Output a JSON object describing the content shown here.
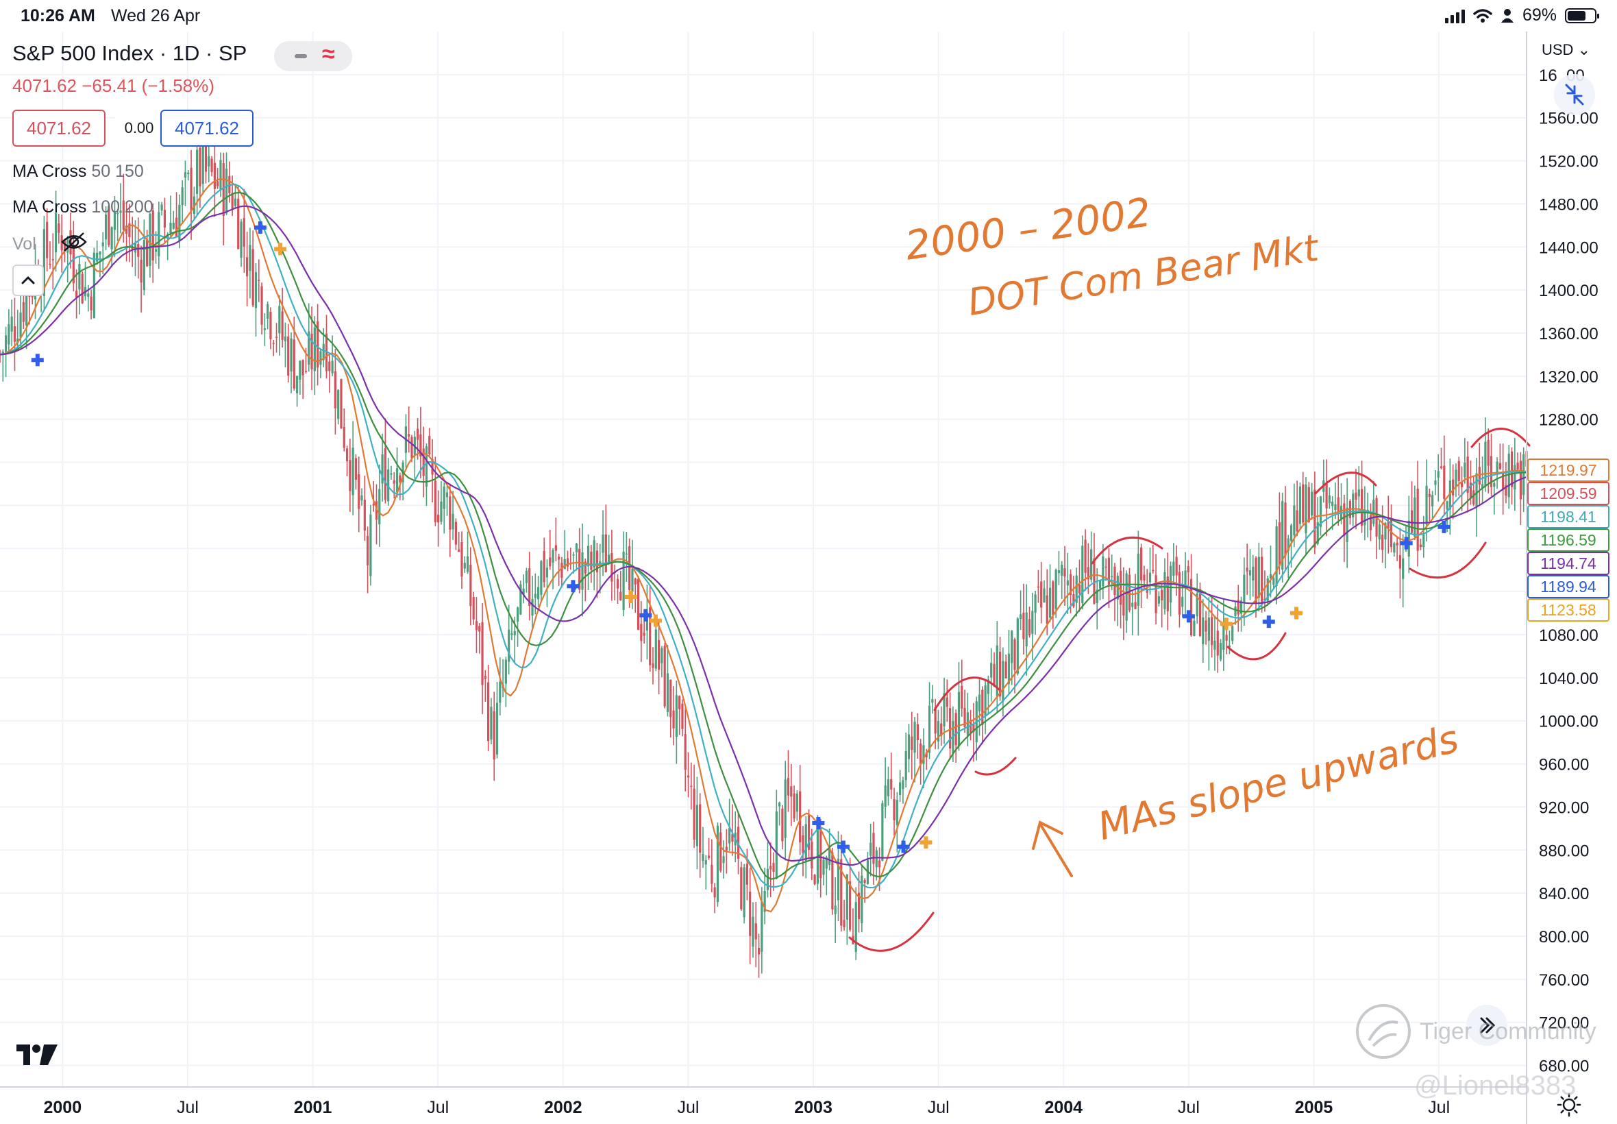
{
  "status_bar": {
    "time": "10:26 AM",
    "date": "Wed 26 Apr",
    "battery": "69%",
    "battery_level": 0.69
  },
  "header": {
    "symbol_title": "S&P 500 Index · 1D · SP",
    "last_change": "4071.62 −65.41 (−1.58%)",
    "sell_price": "4071.62",
    "spread": "0.00",
    "buy_price": "4071.62"
  },
  "indicators": [
    {
      "name": "MA Cross",
      "params": "50 150"
    },
    {
      "name": "MA Cross",
      "params": "100 200"
    }
  ],
  "volume_label": "Vol",
  "currency": "USD",
  "annotations": {
    "top_line1": "2000 – 2002",
    "top_line2": "DOT Com Bear Mkt",
    "bottom": "MAs slope upwards"
  },
  "watermark": {
    "brand": "Tiger Community",
    "user": "@Lionel8383"
  },
  "icons": [
    "hide-eye-icon",
    "collapse-chevron-icon",
    "expand-arrows-icon",
    "tradingview-logo-icon",
    "goto-realtime-icon",
    "settings-sun-icon",
    "wifi-icon",
    "signal-icon",
    "person-icon",
    "battery-icon"
  ],
  "chart_data": {
    "type": "candlestick",
    "title": "S&P 500 Index · 1D · SP",
    "x_ticks": [
      "2000",
      "Jul",
      "2001",
      "Jul",
      "2002",
      "Jul",
      "2003",
      "Jul",
      "2004",
      "Jul",
      "2005",
      "Jul"
    ],
    "y_ticks": [
      680,
      720,
      760,
      800,
      840,
      880,
      920,
      960,
      1000,
      1040,
      1080,
      1120,
      1160,
      1200,
      1240,
      1280,
      1320,
      1360,
      1400,
      1440,
      1480,
      1520,
      1560,
      1600
    ],
    "y_tick_labels": [
      "680.00",
      "720.00",
      "760.00",
      "800.00",
      "840.00",
      "880.00",
      "920.00",
      "960.00",
      "1000.00",
      "1040.00",
      "1080.00",
      "",
      "",
      "",
      "",
      "1280.00",
      "1320.00",
      "1360.00",
      "1400.00",
      "1440.00",
      "1480.00",
      "1520.00",
      "1560.00",
      "16  00"
    ],
    "ylim": [
      660,
      1640
    ],
    "x_range": [
      1999.75,
      2005.85
    ],
    "grid": true,
    "price_path": [
      [
        1999.75,
        1340
      ],
      [
        1999.9,
        1420
      ],
      [
        2000.0,
        1455
      ],
      [
        2000.1,
        1395
      ],
      [
        2000.2,
        1480
      ],
      [
        2000.3,
        1430
      ],
      [
        2000.45,
        1470
      ],
      [
        2000.55,
        1510
      ],
      [
        2000.68,
        1490
      ],
      [
        2000.75,
        1420
      ],
      [
        2000.85,
        1370
      ],
      [
        2000.95,
        1320
      ],
      [
        2001.05,
        1360
      ],
      [
        2001.15,
        1240
      ],
      [
        2001.22,
        1150
      ],
      [
        2001.28,
        1230
      ],
      [
        2001.4,
        1260
      ],
      [
        2001.48,
        1210
      ],
      [
        2001.55,
        1200
      ],
      [
        2001.65,
        1090
      ],
      [
        2001.72,
        980
      ],
      [
        2001.8,
        1080
      ],
      [
        2001.9,
        1140
      ],
      [
        2002.0,
        1150
      ],
      [
        2002.1,
        1140
      ],
      [
        2002.2,
        1160
      ],
      [
        2002.28,
        1110
      ],
      [
        2002.36,
        1070
      ],
      [
        2002.45,
        1000
      ],
      [
        2002.55,
        880
      ],
      [
        2002.6,
        860
      ],
      [
        2002.65,
        900
      ],
      [
        2002.75,
        820
      ],
      [
        2002.78,
        780
      ],
      [
        2002.85,
        900
      ],
      [
        2002.92,
        930
      ],
      [
        2003.0,
        880
      ],
      [
        2003.08,
        850
      ],
      [
        2003.16,
        820
      ],
      [
        2003.22,
        860
      ],
      [
        2003.3,
        920
      ],
      [
        2003.4,
        980
      ],
      [
        2003.5,
        995
      ],
      [
        2003.6,
        1000
      ],
      [
        2003.7,
        1030
      ],
      [
        2003.8,
        1060
      ],
      [
        2003.9,
        1100
      ],
      [
        2004.0,
        1130
      ],
      [
        2004.1,
        1140
      ],
      [
        2004.2,
        1110
      ],
      [
        2004.3,
        1130
      ],
      [
        2004.4,
        1130
      ],
      [
        2004.5,
        1110
      ],
      [
        2004.6,
        1080
      ],
      [
        2004.7,
        1110
      ],
      [
        2004.8,
        1140
      ],
      [
        2004.9,
        1190
      ],
      [
        2005.0,
        1190
      ],
      [
        2005.1,
        1200
      ],
      [
        2005.2,
        1190
      ],
      [
        2005.3,
        1160
      ],
      [
        2005.4,
        1180
      ],
      [
        2005.5,
        1220
      ],
      [
        2005.6,
        1230
      ],
      [
        2005.7,
        1230
      ],
      [
        2005.78,
        1235
      ],
      [
        2005.85,
        1225
      ]
    ],
    "series": [
      {
        "name": "MA Cross 50",
        "color": "#f7a21b"
      },
      {
        "name": "MA Cross 150",
        "color": "#e0555b"
      },
      {
        "name": "MA Cross 100",
        "color": "#4bb7c6"
      },
      {
        "name": "MA Cross 200",
        "color": "#4c9f4c"
      }
    ],
    "last_price_labels": [
      {
        "value": "1219.97",
        "color": "#e27932"
      },
      {
        "value": "1209.59",
        "color": "#d4505a"
      },
      {
        "value": "1198.41",
        "color": "#3fa8b8"
      },
      {
        "value": "1196.59",
        "color": "#3d9b3d"
      },
      {
        "value": "1194.74",
        "color": "#7b2fa8"
      },
      {
        "value": "1189.94",
        "color": "#2a5bd7"
      },
      {
        "value": "1123.58",
        "color": "#e8a320"
      }
    ],
    "cross_markers": [
      {
        "x": 1999.9,
        "y": 1335,
        "kind": "blue"
      },
      {
        "x": 2000.79,
        "y": 1458,
        "kind": "blue"
      },
      {
        "x": 2000.87,
        "y": 1438,
        "kind": "orange"
      },
      {
        "x": 2002.04,
        "y": 1125,
        "kind": "blue"
      },
      {
        "x": 2002.27,
        "y": 1115,
        "kind": "orange"
      },
      {
        "x": 2002.33,
        "y": 1098,
        "kind": "blue"
      },
      {
        "x": 2002.37,
        "y": 1093,
        "kind": "orange"
      },
      {
        "x": 2003.02,
        "y": 905,
        "kind": "blue"
      },
      {
        "x": 2003.12,
        "y": 883,
        "kind": "blue"
      },
      {
        "x": 2003.36,
        "y": 883,
        "kind": "blue"
      },
      {
        "x": 2003.45,
        "y": 887,
        "kind": "orange"
      },
      {
        "x": 2004.5,
        "y": 1097,
        "kind": "blue"
      },
      {
        "x": 2004.65,
        "y": 1090,
        "kind": "orange"
      },
      {
        "x": 2004.82,
        "y": 1092,
        "kind": "blue"
      },
      {
        "x": 2004.93,
        "y": 1100,
        "kind": "orange"
      },
      {
        "x": 2005.37,
        "y": 1165,
        "kind": "blue"
      },
      {
        "x": 2005.52,
        "y": 1180,
        "kind": "blue"
      }
    ]
  }
}
